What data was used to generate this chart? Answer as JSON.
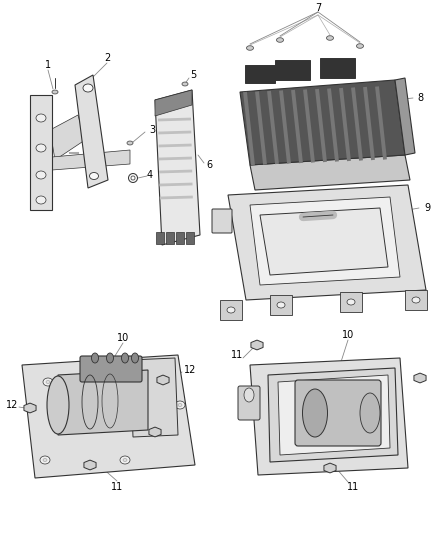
{
  "bg_color": "#ffffff",
  "dark": "#333333",
  "mid": "#888888",
  "light": "#cccccc",
  "lighter": "#e8e8e8",
  "part_fill": "#e0e0e0",
  "part_fill2": "#d0d0d0",
  "label_fs": 7.0,
  "leader_color": "#999999",
  "fig_w": 4.38,
  "fig_h": 5.33,
  "dpi": 100
}
